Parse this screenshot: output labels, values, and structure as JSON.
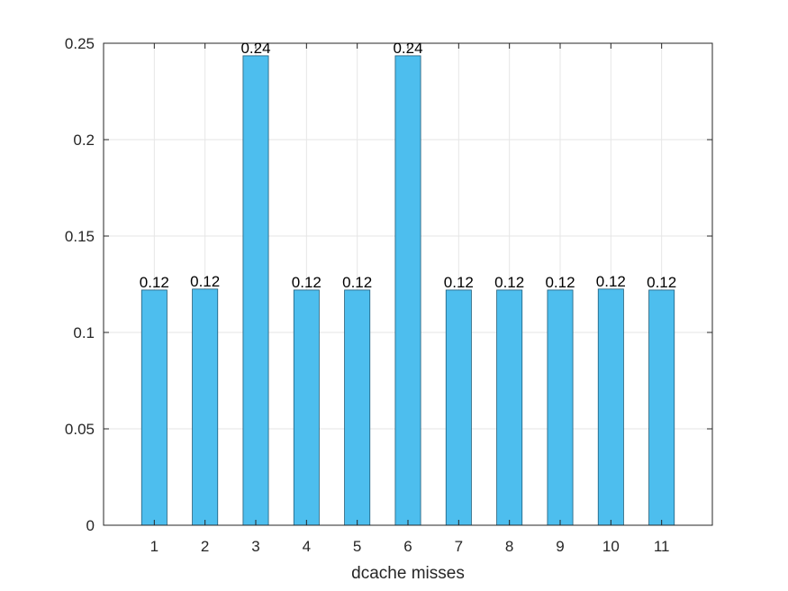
{
  "chart_data": {
    "type": "bar",
    "title": "",
    "xlabel": "dcache misses",
    "ylabel": "",
    "categories": [
      "1",
      "2",
      "3",
      "4",
      "5",
      "6",
      "7",
      "8",
      "9",
      "10",
      "11"
    ],
    "values": [
      0.122,
      0.1225,
      0.2435,
      0.122,
      0.122,
      0.2435,
      0.122,
      0.122,
      0.122,
      0.1225,
      0.122
    ],
    "data_labels": [
      "0.12",
      "0.12",
      "0.24",
      "0.12",
      "0.12",
      "0.24",
      "0.12",
      "0.12",
      "0.12",
      "0.12",
      "0.12"
    ],
    "ylim": [
      0,
      0.25
    ],
    "xlim": [
      0,
      12
    ],
    "yticks": [
      0,
      0.05,
      0.1,
      0.15,
      0.2,
      0.25
    ],
    "ytick_labels": [
      "0",
      "0.05",
      "0.1",
      "0.15",
      "0.2",
      "0.25"
    ],
    "grid": true,
    "legend": "none",
    "colors": {
      "bar_fill": "#4DBEEE",
      "bar_edge": "#1F5C78",
      "axis": "#262626",
      "grid": "#E6E6E6"
    }
  }
}
